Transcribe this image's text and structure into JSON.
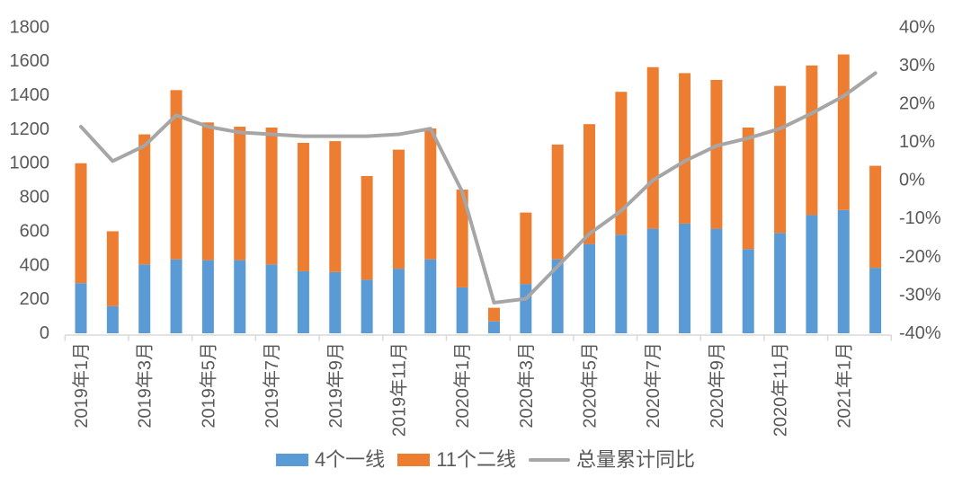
{
  "chart_data": {
    "type": "combo-stacked-bar-line",
    "title": "",
    "categories": [
      "2019年1月",
      "2019年2月",
      "2019年3月",
      "2019年4月",
      "2019年5月",
      "2019年6月",
      "2019年7月",
      "2019年8月",
      "2019年9月",
      "2019年10月",
      "2019年11月",
      "2019年12月",
      "2020年1月",
      "2020年2月",
      "2020年3月",
      "2020年4月",
      "2020年5月",
      "2020年6月",
      "2020年7月",
      "2020年8月",
      "2020年9月",
      "2020年10月",
      "2020年11月",
      "2020年12月",
      "2021年1月",
      "2021年2月"
    ],
    "x_tick_labels": [
      "2019年1月",
      "2019年3月",
      "2019年5月",
      "2019年7月",
      "2019年9月",
      "2019年11月",
      "2020年1月",
      "2020年3月",
      "2020年5月",
      "2020年7月",
      "2020年9月",
      "2020年11月",
      "2021年1月"
    ],
    "x_label_every": 2,
    "series": [
      {
        "name": "4个一线",
        "type": "bar",
        "stack": "total",
        "axis": "left",
        "color": "#5B9BD5",
        "values": [
          295,
          160,
          405,
          435,
          430,
          430,
          405,
          365,
          360,
          315,
          380,
          435,
          270,
          70,
          290,
          435,
          525,
          580,
          615,
          645,
          615,
          495,
          590,
          695,
          725,
          385
        ]
      },
      {
        "name": "11个二线",
        "type": "bar",
        "stack": "total",
        "axis": "left",
        "color": "#ED7D31",
        "values": [
          705,
          440,
          765,
          995,
          810,
          785,
          805,
          755,
          770,
          610,
          700,
          770,
          575,
          80,
          420,
          675,
          705,
          840,
          950,
          885,
          875,
          715,
          865,
          880,
          915,
          600
        ]
      },
      {
        "name": "总量累计同比",
        "type": "line",
        "axis": "right",
        "color": "#A6A6A6",
        "values": [
          14,
          5,
          9,
          17,
          14,
          12.5,
          12,
          11.5,
          11.5,
          11.5,
          12,
          13.5,
          -3,
          -32,
          -31,
          -22.5,
          -14,
          -8,
          0,
          5,
          9,
          11,
          13.5,
          17.5,
          22,
          28
        ]
      }
    ],
    "left_axis": {
      "min": 0,
      "max": 1800,
      "step": 200,
      "suffix": ""
    },
    "right_axis": {
      "min": -40,
      "max": 40,
      "step": 10,
      "suffix": "%"
    },
    "legend_position": "bottom",
    "grid": false
  },
  "colors": {
    "axis_text": "#595959",
    "axis_line": "#D9D9D9",
    "background": "#FFFFFF"
  }
}
